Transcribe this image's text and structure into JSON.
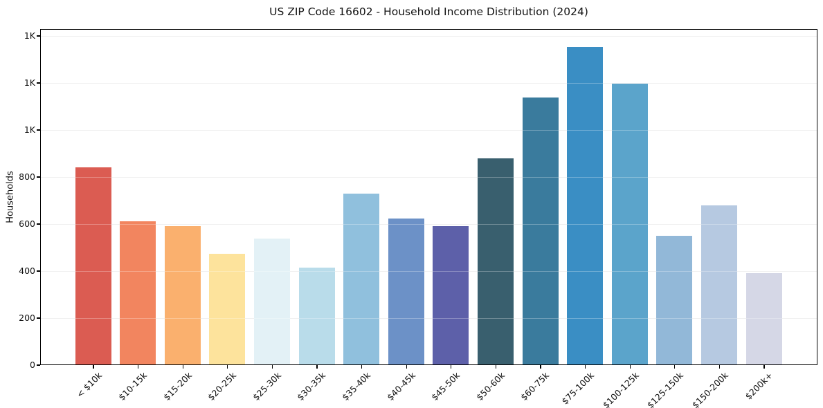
{
  "chart_data": {
    "type": "bar",
    "title": "US ZIP Code 16602 - Household Income Distribution (2024)",
    "xlabel": "",
    "ylabel": "Households",
    "categories": [
      "< $10k",
      "$10-15k",
      "$15-20k",
      "$20-25k",
      "$25-30k",
      "$30-35k",
      "$35-40k",
      "$40-45k",
      "$45-50k",
      "$50-60k",
      "$60-75k",
      "$75-100k",
      "$100-125k",
      "$125-150k",
      "$150-200k",
      "$200k+"
    ],
    "values": [
      841,
      612,
      590,
      471,
      538,
      413,
      727,
      622,
      591,
      878,
      1136,
      1353,
      1197,
      550,
      679,
      391
    ],
    "bar_colors": [
      "#db5c52",
      "#f2855f",
      "#fab06e",
      "#fde39c",
      "#e3f1f6",
      "#b9dcea",
      "#90c0dd",
      "#6c91c7",
      "#5d60a9",
      "#395f6e",
      "#3a7b9d",
      "#3a8ec4",
      "#5ba4cb",
      "#92b8d8",
      "#b6c9e1",
      "#d5d7e6"
    ],
    "ylim": [
      0,
      1430
    ],
    "yticks": [
      {
        "value": 0,
        "label": "0"
      },
      {
        "value": 200,
        "label": "200"
      },
      {
        "value": 400,
        "label": "400"
      },
      {
        "value": 600,
        "label": "600"
      },
      {
        "value": 800,
        "label": "800"
      },
      {
        "value": 1000,
        "label": "1K"
      },
      {
        "value": 1200,
        "label": "1K"
      },
      {
        "value": 1400,
        "label": "1K"
      }
    ],
    "grid": "horizontal",
    "legend": "none",
    "colors": {
      "grid": "#ebebeb",
      "spine": "#000000",
      "background": "#ffffff",
      "text": "#111111"
    }
  }
}
